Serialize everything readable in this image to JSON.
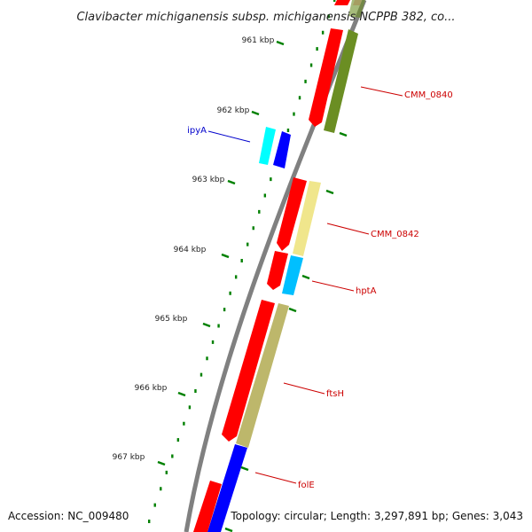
{
  "title": "Clavibacter michiganensis subsp. michiganensis NCPPB 382, co...",
  "footer": {
    "accession": "Accession: NC_009480",
    "info": "Topology: circular; Length: 3,297,891 bp; Genes: 3,043"
  },
  "colors": {
    "backbone": "#808080",
    "cds": "#ff0000",
    "tick": "#008000",
    "label_red": "#cc0000",
    "label_blue": "#0000cc"
  },
  "ticks": [
    {
      "label": "961 kbp"
    },
    {
      "label": "962 kbp"
    },
    {
      "label": "963 kbp"
    },
    {
      "label": "964 kbp"
    },
    {
      "label": "965 kbp"
    },
    {
      "label": "966 kbp"
    },
    {
      "label": "967 kbp"
    }
  ],
  "genes": [
    {
      "label": "CMM_0840",
      "color": "#6b8e23"
    },
    {
      "label": "ipyA",
      "color": "#0000ff"
    },
    {
      "label": "CMM_0842",
      "color": "#f0e68c"
    },
    {
      "label": "hptA",
      "color": "#00bfff"
    },
    {
      "label": "ftsH",
      "color": "#bdb76b"
    },
    {
      "label": "folE",
      "color": "#0000ff"
    }
  ]
}
